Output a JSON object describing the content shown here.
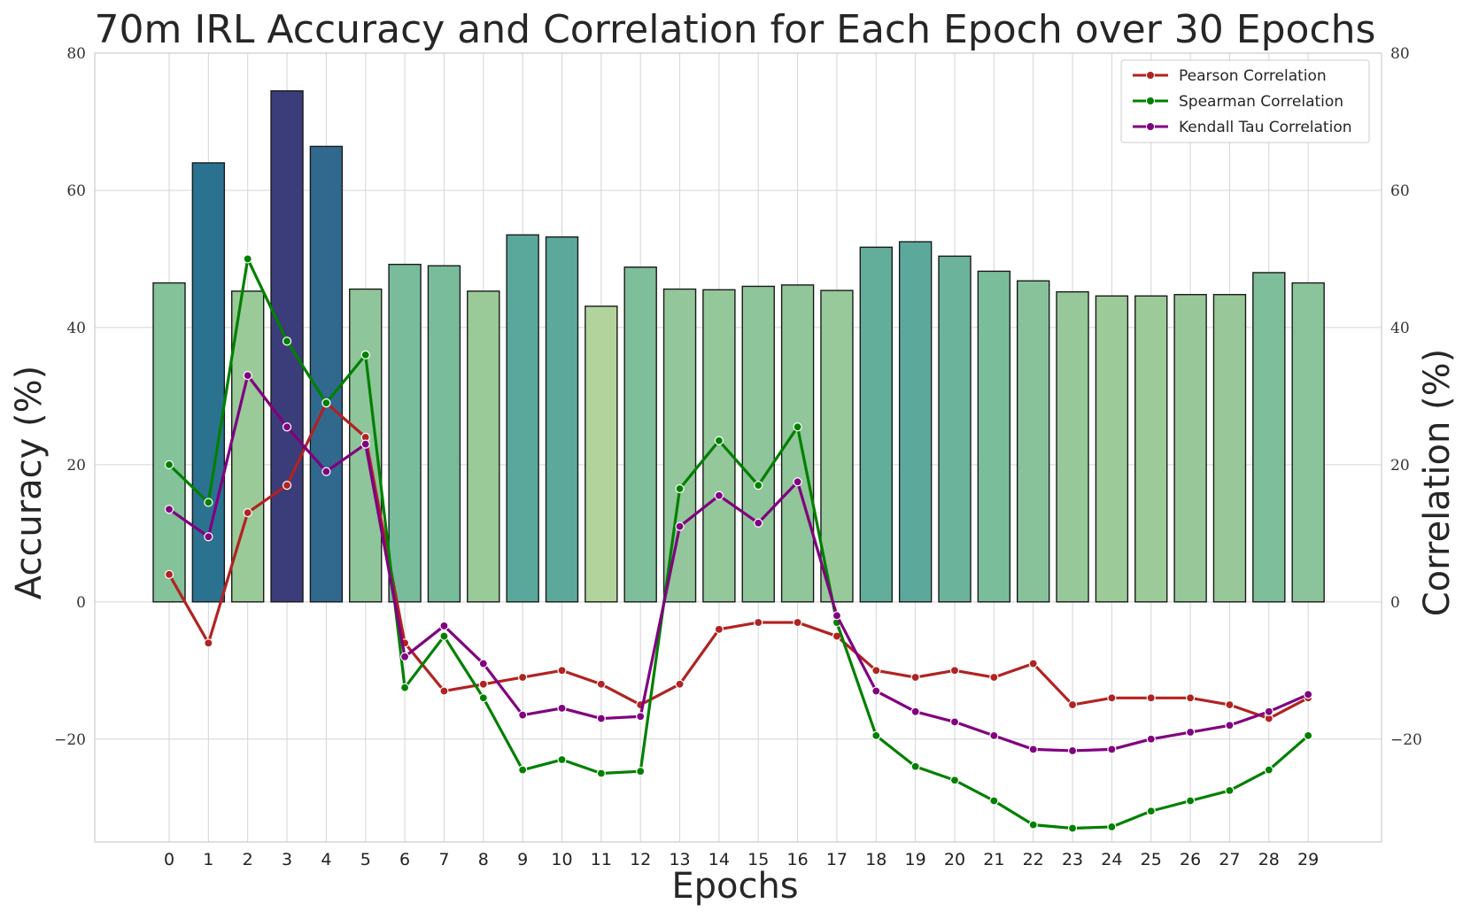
{
  "chart_data": {
    "type": "bar+line",
    "title": "70m IRL Accuracy and Correlation for Each Epoch over 30 Epochs",
    "xlabel": "Epochs",
    "ylabel_left": "Accuracy (%)",
    "ylabel_right": "Correlation (%)",
    "categories": [
      "0",
      "1",
      "2",
      "3",
      "4",
      "5",
      "6",
      "7",
      "8",
      "9",
      "10",
      "11",
      "12",
      "13",
      "14",
      "15",
      "16",
      "17",
      "18",
      "19",
      "20",
      "21",
      "22",
      "23",
      "24",
      "25",
      "26",
      "27",
      "28",
      "29"
    ],
    "ylim": [
      -35,
      80
    ],
    "yticks": [
      -20,
      0,
      20,
      40,
      60,
      80
    ],
    "ytick_labels": [
      "−20",
      "0",
      "20",
      "40",
      "60",
      "80"
    ],
    "grid": true,
    "legend_position": "top-right",
    "bars": {
      "name": "Accuracy",
      "values": [
        46.5,
        64,
        45.3,
        74.5,
        66.4,
        45.6,
        49.2,
        49,
        45.3,
        53.5,
        53.2,
        43.1,
        48.8,
        45.6,
        45.5,
        46,
        46.2,
        45.4,
        51.7,
        52.5,
        50.4,
        48.2,
        46.8,
        45.2,
        44.6,
        44.6,
        44.8,
        44.8,
        48,
        46.5
      ],
      "colors": [
        "#84c29a",
        "#2a7290",
        "#9aca98",
        "#3b3d7a",
        "#31688e",
        "#8fc59a",
        "#78bc9b",
        "#78bc9b",
        "#9aca98",
        "#5aa89c",
        "#5ca99c",
        "#b2d49c",
        "#7fbe9a",
        "#93c69a",
        "#94c79a",
        "#8fc59a",
        "#90c69a",
        "#97c99a",
        "#62ae9b",
        "#5ca99c",
        "#6bb39b",
        "#7abd9a",
        "#87c29a",
        "#96c89a",
        "#9dca99",
        "#9dca99",
        "#98c89a",
        "#98c89a",
        "#7fbe9a",
        "#8bc39a"
      ]
    },
    "series": [
      {
        "name": "Pearson Correlation",
        "color": "#b22222",
        "values": [
          4,
          -6,
          13,
          17,
          29,
          24,
          -6,
          -13,
          -12,
          -11,
          -10,
          -12,
          -15,
          -12,
          -4,
          -3,
          -3,
          -5,
          -10,
          -11,
          -10,
          -11,
          -9,
          -15,
          -14,
          -14,
          -14,
          -15,
          -17,
          -14
        ]
      },
      {
        "name": "Spearman Correlation",
        "color": "#008000",
        "values": [
          20,
          14.5,
          50,
          38,
          29,
          36,
          -12.5,
          -5,
          -14,
          -24.5,
          -23,
          -25,
          -24.7,
          16.5,
          23.5,
          17,
          25.5,
          -3,
          -19.5,
          -24,
          -26,
          -29,
          -32.5,
          -33,
          -32.8,
          -30.5,
          -29,
          -27.5,
          -24.5,
          -19.5
        ]
      },
      {
        "name": "Kendall Tau Correlation",
        "color": "#800080",
        "values": [
          13.5,
          9.5,
          33,
          25.5,
          19,
          23,
          -8,
          -3.5,
          -9,
          -16.5,
          -15.5,
          -17,
          -16.7,
          11,
          15.5,
          11.5,
          17.5,
          -2,
          -13,
          -16,
          -17.5,
          -19.5,
          -21.5,
          -21.7,
          -21.5,
          -20,
          -19,
          -18,
          -16,
          -13.5
        ]
      }
    ]
  }
}
